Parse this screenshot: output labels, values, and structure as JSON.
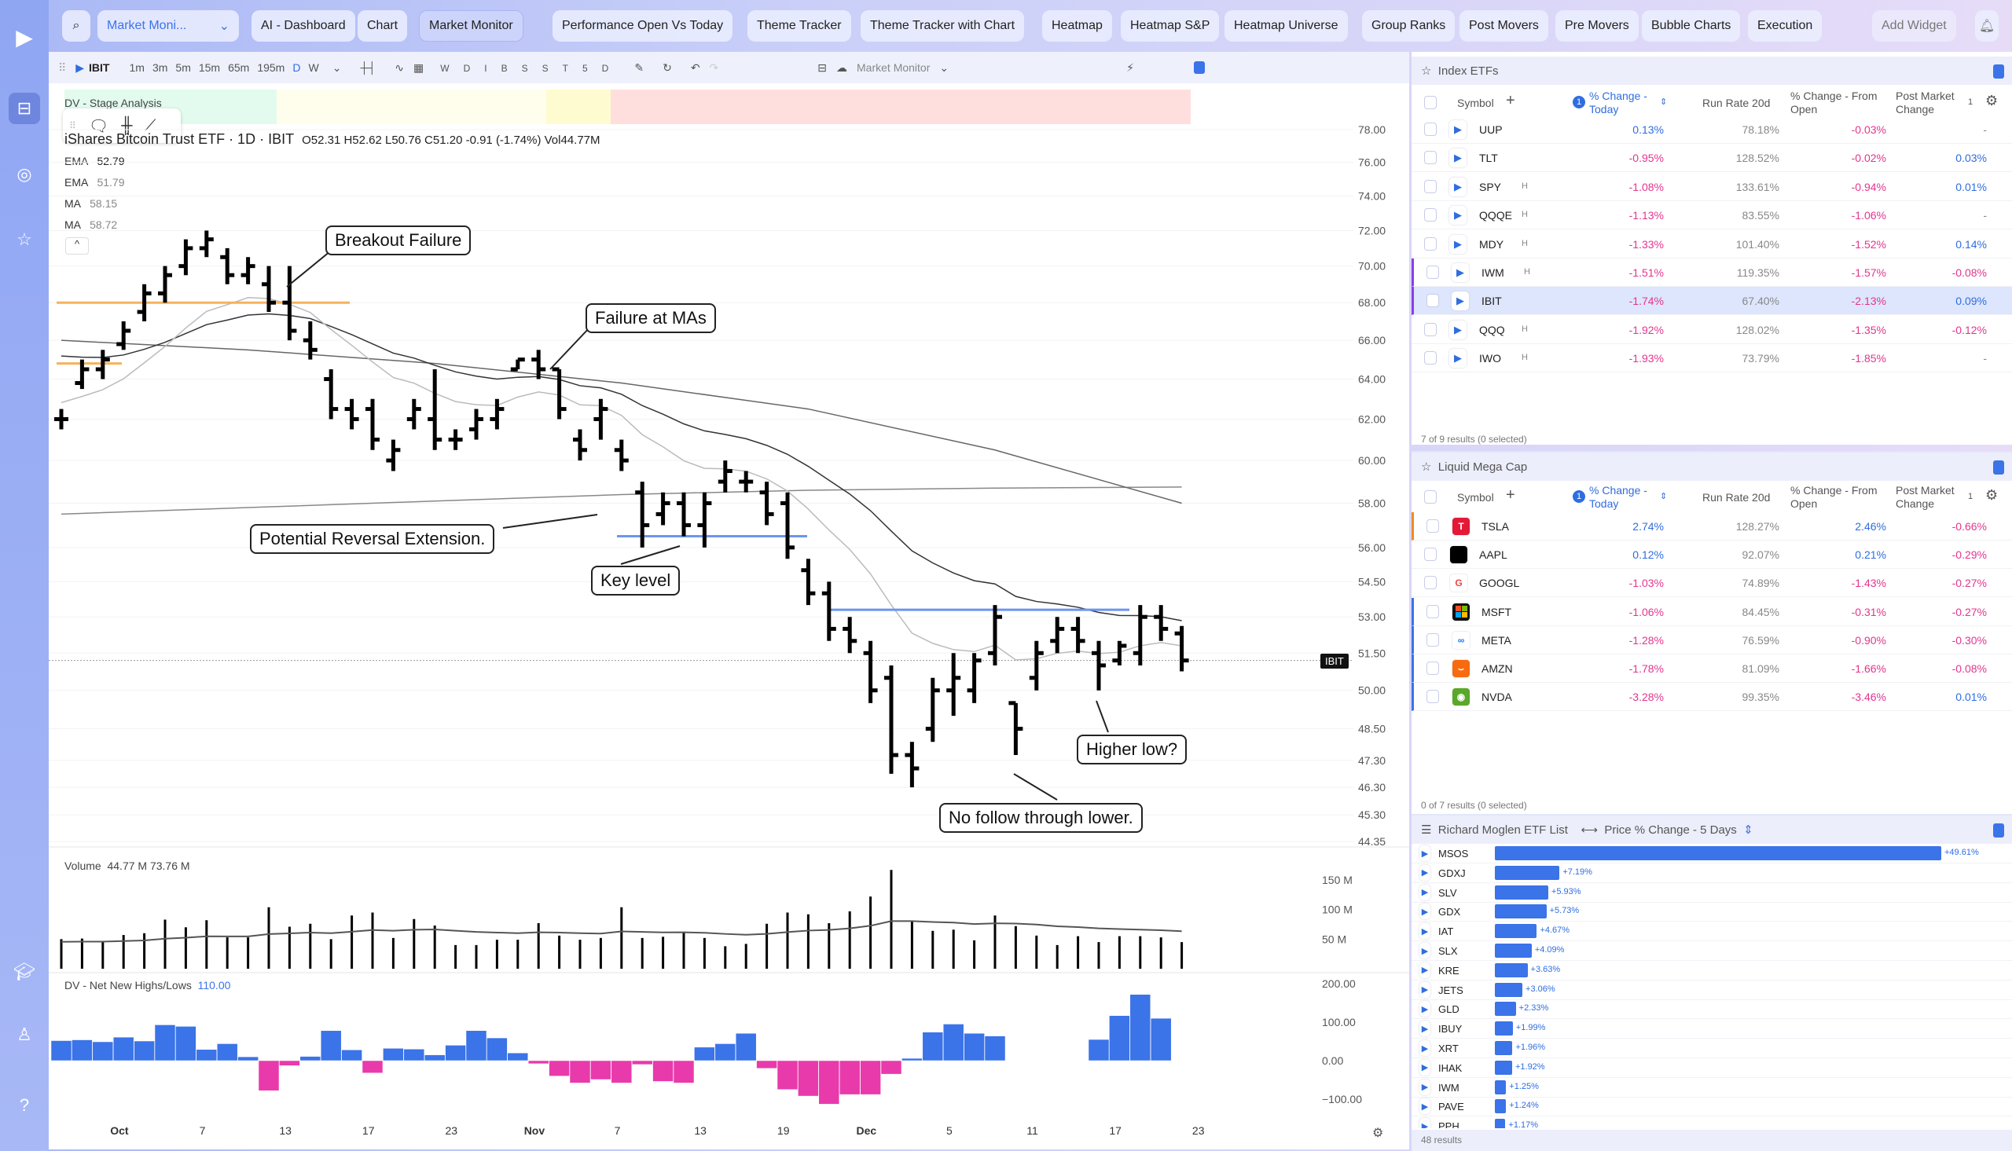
{
  "app": {
    "workspace_select": "Market Moni...",
    "add_widget": "Add Widget"
  },
  "tabs": [
    "AI - Dashboard",
    "Chart",
    "Market Monitor",
    "Performance Open Vs Today",
    "Theme Tracker",
    "Theme Tracker with Chart",
    "Heatmap",
    "Heatmap S&P",
    "Heatmap Universe",
    "Group Ranks",
    "Post Movers",
    "Pre Movers",
    "Bubble Charts",
    "Execution"
  ],
  "active_tab": "Market Monitor",
  "chart_toolbar": {
    "symbol": "IBIT",
    "intervals": [
      "1m",
      "3m",
      "5m",
      "15m",
      "65m",
      "195m",
      "D",
      "W"
    ],
    "active_interval": "D",
    "letters": [
      "W",
      "D",
      "I",
      "B",
      "S",
      "S",
      "T",
      "5",
      "D"
    ],
    "layout_name": "Market Monitor"
  },
  "chart": {
    "stage_label": "DV - Stage Analysis",
    "title": "iShares Bitcoin Trust ETF · 1D · IBIT",
    "ohlc": "O52.31 H52.62 L50.76 C51.20 -0.91 (-1.74%) Vol44.77M",
    "indicators": [
      {
        "name": "EMA",
        "value": "52.79"
      },
      {
        "name": "EMA",
        "value": "51.79"
      },
      {
        "name": "MA",
        "value": "58.15"
      },
      {
        "name": "MA",
        "value": "58.72"
      }
    ],
    "price_tag": "IBIT",
    "price_axis": [
      "78.00",
      "76.00",
      "74.00",
      "72.00",
      "70.00",
      "68.00",
      "66.00",
      "64.00",
      "62.00",
      "60.00",
      "58.00",
      "56.00",
      "54.50",
      "53.00",
      "51.50",
      "50.00",
      "48.50",
      "47.30",
      "46.30",
      "45.30",
      "44.35"
    ],
    "annotations": [
      "Breakout Failure",
      "Failure at MAs",
      "Potential Reversal Extension.",
      "Key level",
      "Higher low?",
      "No follow through lower."
    ],
    "volume_label": "Volume",
    "volume_values": "44.77 M  73.76 M",
    "volume_axis": [
      "150 M",
      "100 M",
      "50 M"
    ],
    "nhnl_label": "DV - Net New Highs/Lows",
    "nhnl_value": "110.00",
    "nhnl_axis": [
      "200.00",
      "100.00",
      "0.00",
      "−100.00"
    ],
    "date_axis": [
      "Oct",
      "7",
      "13",
      "17",
      "23",
      "Nov",
      "7",
      "13",
      "19",
      "Dec",
      "5",
      "11",
      "17",
      "23"
    ]
  },
  "chart_data": {
    "type": "ohlc",
    "ohlc_hloc": [
      [
        62.5,
        61.5,
        62,
        62
      ],
      [
        65,
        63.5,
        63.8,
        64.5
      ],
      [
        65.5,
        64,
        64.5,
        65
      ],
      [
        67,
        65.5,
        65.8,
        66.5
      ],
      [
        69,
        67,
        67.5,
        68.5
      ],
      [
        70,
        68,
        68.5,
        69.5
      ],
      [
        71.5,
        69.5,
        70,
        71
      ],
      [
        72,
        70.5,
        71,
        71.5
      ],
      [
        71,
        69,
        70.5,
        69.5
      ],
      [
        70.5,
        69,
        69.5,
        70
      ],
      [
        70,
        67.5,
        69,
        68
      ],
      [
        70,
        66,
        68,
        66.5
      ],
      [
        67,
        65,
        66,
        65.5
      ],
      [
        64.5,
        62,
        64,
        62.5
      ],
      [
        63,
        61.5,
        62.5,
        62
      ],
      [
        63,
        60.5,
        62.5,
        61
      ],
      [
        61,
        59.5,
        60,
        60.5
      ],
      [
        63,
        61.5,
        62,
        62.5
      ],
      [
        64.5,
        60.5,
        62,
        61
      ],
      [
        61.5,
        60.5,
        61,
        61
      ],
      [
        62.5,
        61,
        61.5,
        62
      ],
      [
        63,
        61.5,
        62,
        62.5
      ],
      [
        65,
        64.5,
        64.5,
        65
      ],
      [
        65.5,
        64,
        65,
        64.5
      ],
      [
        64.5,
        62,
        64.5,
        62.5
      ],
      [
        61.5,
        60,
        61,
        60.5
      ],
      [
        63,
        61,
        62,
        62.5
      ],
      [
        61,
        59.5,
        60.5,
        60
      ],
      [
        59,
        56,
        58.5,
        57
      ],
      [
        58.5,
        57,
        57.5,
        58
      ],
      [
        58.5,
        56.5,
        58,
        57
      ],
      [
        58.5,
        56,
        57,
        58
      ],
      [
        60,
        58.5,
        59,
        59.5
      ],
      [
        59.5,
        58.5,
        59,
        59
      ],
      [
        59,
        57,
        58.5,
        57.5
      ],
      [
        58.5,
        55.5,
        58,
        56
      ],
      [
        55.5,
        53.5,
        55,
        54
      ],
      [
        54.5,
        52,
        54,
        52.5
      ],
      [
        53,
        51.5,
        52.5,
        52
      ],
      [
        52,
        49.5,
        51.5,
        50
      ],
      [
        51,
        46.8,
        50.5,
        47.5
      ],
      [
        48,
        46.3,
        47.5,
        47
      ],
      [
        50.5,
        48,
        48.5,
        50
      ],
      [
        51.5,
        49,
        50,
        50.5
      ],
      [
        51.5,
        49.5,
        50,
        51.2
      ],
      [
        53.5,
        51,
        51.5,
        53
      ],
      [
        49.5,
        47.5,
        49.5,
        48.5
      ],
      [
        52,
        50,
        50.5,
        51.5
      ],
      [
        53,
        51.5,
        52,
        52.5
      ],
      [
        53,
        51.5,
        52.5,
        52
      ],
      [
        52,
        50,
        51.5,
        51
      ],
      [
        52,
        51,
        51.2,
        51.8
      ],
      [
        53.5,
        51,
        51.5,
        53
      ],
      [
        53.5,
        52,
        53,
        52.5
      ],
      [
        52.62,
        50.76,
        52.31,
        51.2
      ]
    ],
    "ma_long": [
      57.5,
      57.8,
      58.1,
      58.4,
      58.6,
      58.7,
      58.75
    ],
    "ma_mid": [
      66,
      65.5,
      64.8,
      63.8,
      62.5,
      60.5,
      58
    ],
    "volume_m": [
      50,
      51,
      45,
      57,
      60,
      83,
      70,
      82,
      53,
      53,
      104,
      71,
      76,
      50,
      90,
      95,
      52,
      84,
      73,
      40,
      40,
      49,
      49,
      77,
      56,
      49,
      52,
      104,
      52,
      54,
      62,
      52,
      38,
      42,
      76,
      95,
      92,
      77,
      97,
      122,
      167,
      80,
      64,
      66,
      48,
      90,
      72,
      56,
      40,
      55,
      45,
      55,
      55,
      53,
      45
    ],
    "nhnl": [
      52,
      54,
      49,
      61,
      51,
      93,
      89,
      29,
      44,
      10,
      -78,
      -13,
      11,
      78,
      28,
      -32,
      32,
      30,
      15,
      40,
      78,
      59,
      20,
      -8,
      -40,
      -58,
      -49,
      -58,
      -10,
      -54,
      -58,
      35,
      44,
      71,
      -20,
      -75,
      -92,
      -113,
      -88,
      -88,
      -35,
      6,
      74,
      95,
      71,
      64,
      null,
      null,
      null,
      null,
      55,
      117,
      172,
      110,
      null
    ],
    "ylim": [
      44.35,
      78
    ],
    "yscale": "log"
  },
  "index_etfs": {
    "title": "Index ETFs",
    "columns": [
      "Symbol",
      "% Change - Today",
      "Run Rate 20d",
      "% Change - From Open",
      "Post Market Change"
    ],
    "sort_badge": "1",
    "col_count": "1",
    "rows": [
      {
        "sym": "UUP",
        "h": "",
        "chg": "0.13%",
        "rr": "78.18%",
        "open": "-0.03%",
        "post": "-"
      },
      {
        "sym": "TLT",
        "h": "",
        "chg": "-0.95%",
        "rr": "128.52%",
        "open": "-0.02%",
        "post": "0.03%"
      },
      {
        "sym": "SPY",
        "h": "H",
        "chg": "-1.08%",
        "rr": "133.61%",
        "open": "-0.94%",
        "post": "0.01%"
      },
      {
        "sym": "QQQE",
        "h": "H",
        "chg": "-1.13%",
        "rr": "83.55%",
        "open": "-1.06%",
        "post": "-"
      },
      {
        "sym": "MDY",
        "h": "H",
        "chg": "-1.33%",
        "rr": "101.40%",
        "open": "-1.52%",
        "post": "0.14%"
      },
      {
        "sym": "IWM",
        "h": "H",
        "chg": "-1.51%",
        "rr": "119.35%",
        "open": "-1.57%",
        "post": "-0.08%"
      },
      {
        "sym": "IBIT",
        "h": "",
        "chg": "-1.74%",
        "rr": "67.40%",
        "open": "-2.13%",
        "post": "0.09%"
      },
      {
        "sym": "QQQ",
        "h": "H",
        "chg": "-1.92%",
        "rr": "128.02%",
        "open": "-1.35%",
        "post": "-0.12%"
      },
      {
        "sym": "IWO",
        "h": "H",
        "chg": "-1.93%",
        "rr": "73.79%",
        "open": "-1.85%",
        "post": "-"
      }
    ],
    "footer": "7 of 9 results (0 selected)"
  },
  "mega_cap": {
    "title": "Liquid Mega Cap",
    "rows": [
      {
        "sym": "TSLA",
        "chg": "2.74%",
        "rr": "128.27%",
        "open": "2.46%",
        "post": "-0.66%",
        "logo": "T",
        "color": "#e31937"
      },
      {
        "sym": "AAPL",
        "chg": "0.12%",
        "rr": "92.07%",
        "open": "0.21%",
        "post": "-0.29%",
        "logo": "",
        "color": "#000000"
      },
      {
        "sym": "GOOGL",
        "chg": "-1.03%",
        "rr": "74.89%",
        "open": "-1.43%",
        "post": "-0.27%",
        "logo": "G",
        "color": "#ffffff"
      },
      {
        "sym": "MSFT",
        "chg": "-1.06%",
        "rr": "84.45%",
        "open": "-0.31%",
        "post": "-0.27%",
        "logo": "",
        "color": "#111111"
      },
      {
        "sym": "META",
        "chg": "-1.28%",
        "rr": "76.59%",
        "open": "-0.90%",
        "post": "-0.30%",
        "logo": "∞",
        "color": "#ffffff"
      },
      {
        "sym": "AMZN",
        "chg": "-1.78%",
        "rr": "81.09%",
        "open": "-1.66%",
        "post": "-0.08%",
        "logo": "⌣",
        "color": "#f86a10"
      },
      {
        "sym": "NVDA",
        "chg": "-3.28%",
        "rr": "99.35%",
        "open": "-3.46%",
        "post": "0.01%",
        "logo": "◉",
        "color": "#5aa829"
      }
    ],
    "footer": "0 of 7 results (0 selected)"
  },
  "etf_list": {
    "title": "Richard Moglen ETF List",
    "metric": "Price % Change - 5 Days",
    "rows": [
      [
        "MSOS",
        49.61,
        "+49.61%"
      ],
      [
        "GDXJ",
        7.19,
        "+7.19%"
      ],
      [
        "SLV",
        5.93,
        "+5.93%"
      ],
      [
        "GDX",
        5.73,
        "+5.73%"
      ],
      [
        "IAT",
        4.67,
        "+4.67%"
      ],
      [
        "SLX",
        4.09,
        "+4.09%"
      ],
      [
        "KRE",
        3.63,
        "+3.63%"
      ],
      [
        "JETS",
        3.06,
        "+3.06%"
      ],
      [
        "GLD",
        2.33,
        "+2.33%"
      ],
      [
        "IBUY",
        1.99,
        "+1.99%"
      ],
      [
        "XRT",
        1.96,
        "+1.96%"
      ],
      [
        "IHAK",
        1.92,
        "+1.92%"
      ],
      [
        "IWM",
        1.25,
        "+1.25%"
      ],
      [
        "PAVE",
        1.24,
        "+1.24%"
      ],
      [
        "PPH",
        1.17,
        "+1.17%"
      ]
    ],
    "footer": "48 results"
  },
  "colors": {
    "accent": "#3b73e8",
    "negative": "#e3358f",
    "positive": "#2f6de0"
  }
}
